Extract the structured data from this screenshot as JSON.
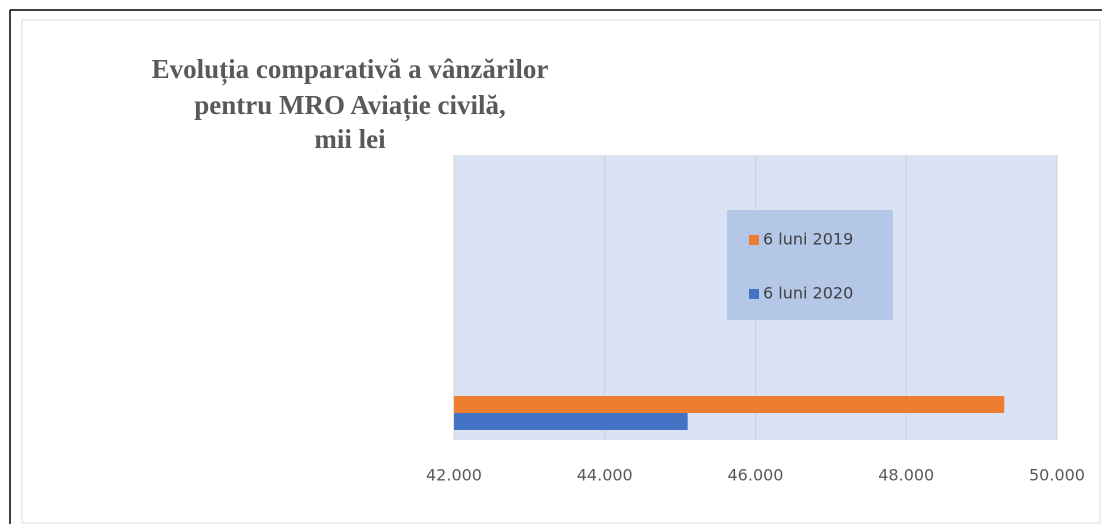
{
  "chart_data": {
    "type": "hbar",
    "title": [
      "Evoluția comparativă a vânzărilor",
      "pentru  MRO Aviație civilă,",
      "mii lei"
    ],
    "categories": [
      null
    ],
    "series": [
      {
        "name": "6 luni 2019",
        "color": "#ed7d31",
        "values": [
          49300
        ]
      },
      {
        "name": "6 luni 2020",
        "color": "#4472c4",
        "values": [
          45100
        ]
      }
    ],
    "xlim": [
      42000,
      50000
    ],
    "xticks": [
      {
        "value": 42000,
        "label": "42.000"
      },
      {
        "value": 44000,
        "label": "44.000"
      },
      {
        "value": 46000,
        "label": "46.000"
      },
      {
        "value": 48000,
        "label": "48.000"
      },
      {
        "value": 50000,
        "label": "50.000"
      }
    ],
    "grid": true
  }
}
